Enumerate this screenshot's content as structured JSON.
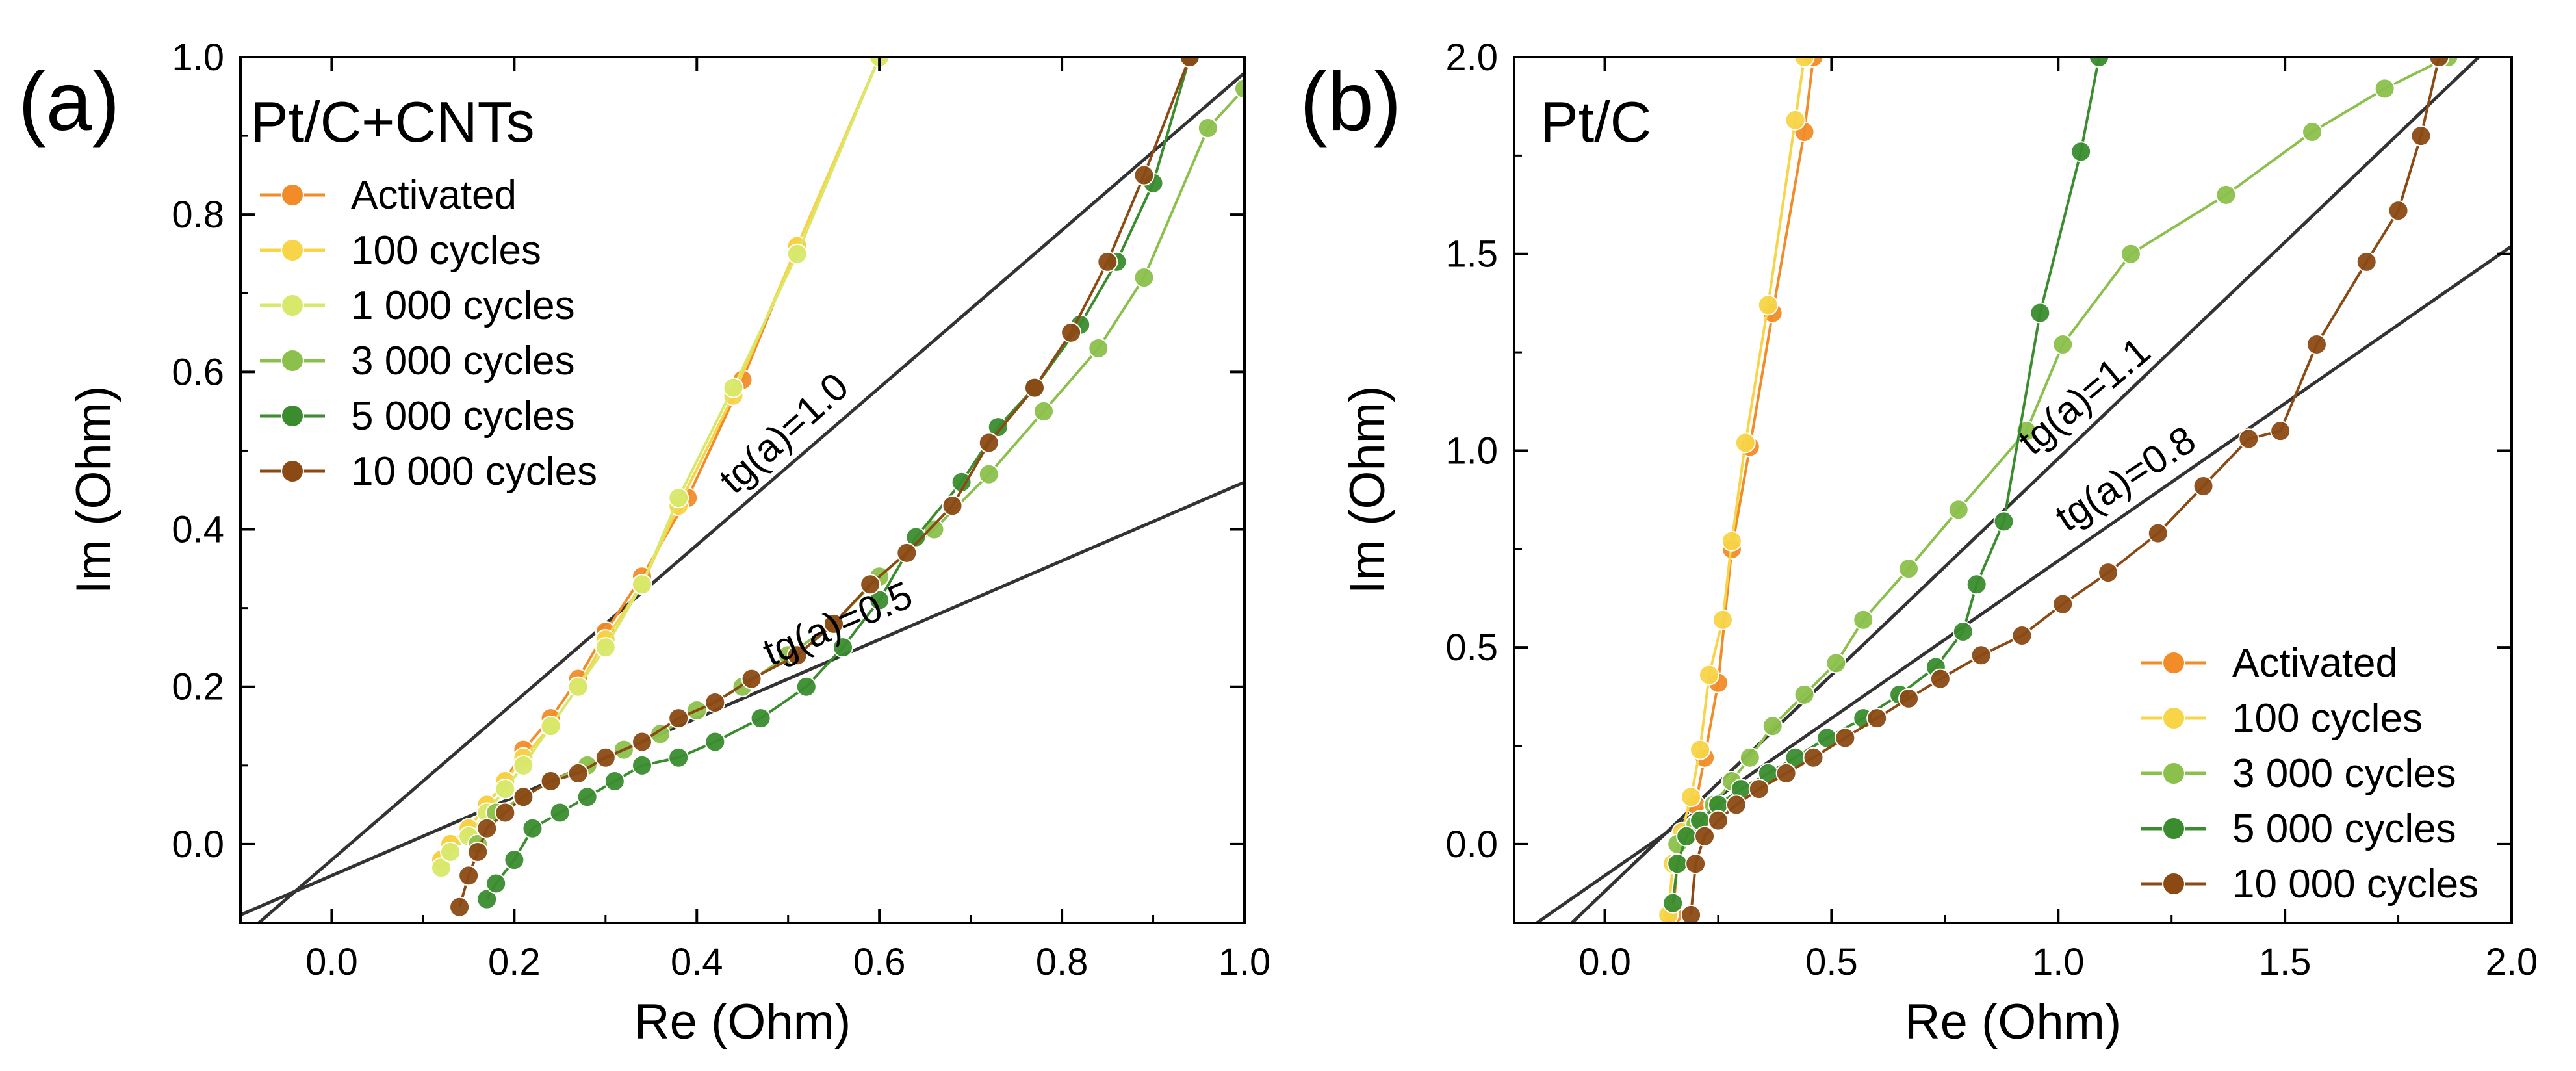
{
  "chart_data": [
    {
      "type": "scatter",
      "panel_label": "(a)",
      "title": "Pt/C+CNTs",
      "xlabel": "Re (Ohm)",
      "ylabel": "Im (Ohm)",
      "xlim": [
        -0.1,
        1.0
      ],
      "ylim": [
        -0.1,
        1.0
      ],
      "xticks": [
        0.0,
        0.2,
        0.4,
        0.6,
        0.8,
        1.0
      ],
      "yticks": [
        0.0,
        0.2,
        0.4,
        0.6,
        0.8,
        1.0
      ],
      "xtick_labels": [
        "0.0",
        "0.2",
        "0.4",
        "0.6",
        "0.8",
        "1.0"
      ],
      "ytick_labels": [
        "0.0",
        "0.2",
        "0.4",
        "0.6",
        "0.8",
        "1.0"
      ],
      "legend_position": "top-left",
      "series": [
        {
          "name": "Activated",
          "color": "#F28C28",
          "x": [
            0.12,
            0.13,
            0.15,
            0.17,
            0.19,
            0.21,
            0.24,
            0.27,
            0.3,
            0.34,
            0.39,
            0.45,
            0.51,
            0.6
          ],
          "y": [
            -0.02,
            0.0,
            0.02,
            0.05,
            0.08,
            0.12,
            0.16,
            0.21,
            0.27,
            0.34,
            0.44,
            0.59,
            0.76,
            1.0
          ]
        },
        {
          "name": "100 cycles",
          "color": "#F7D448",
          "x": [
            0.12,
            0.13,
            0.15,
            0.17,
            0.19,
            0.21,
            0.24,
            0.27,
            0.3,
            0.34,
            0.38,
            0.44,
            0.51,
            0.6
          ],
          "y": [
            -0.02,
            0.0,
            0.02,
            0.05,
            0.08,
            0.11,
            0.15,
            0.2,
            0.26,
            0.33,
            0.43,
            0.57,
            0.76,
            1.0
          ]
        },
        {
          "name": "1 000 cycles",
          "color": "#D8E86A",
          "x": [
            0.12,
            0.13,
            0.15,
            0.17,
            0.19,
            0.21,
            0.24,
            0.27,
            0.3,
            0.34,
            0.38,
            0.44,
            0.51,
            0.6
          ],
          "y": [
            -0.03,
            -0.01,
            0.01,
            0.04,
            0.07,
            0.1,
            0.15,
            0.2,
            0.25,
            0.33,
            0.44,
            0.58,
            0.75,
            1.0
          ]
        },
        {
          "name": "3 000 cycles",
          "color": "#8CC04C",
          "x": [
            0.16,
            0.18,
            0.21,
            0.24,
            0.28,
            0.32,
            0.36,
            0.4,
            0.45,
            0.5,
            0.55,
            0.6,
            0.66,
            0.72,
            0.78,
            0.84,
            0.89,
            0.96,
            1.0
          ],
          "y": [
            0.0,
            0.04,
            0.06,
            0.08,
            0.1,
            0.12,
            0.14,
            0.17,
            0.2,
            0.24,
            0.28,
            0.34,
            0.4,
            0.47,
            0.55,
            0.63,
            0.72,
            0.91,
            0.96
          ]
        },
        {
          "name": "5 000 cycles",
          "color": "#3A8C2E",
          "x": [
            0.17,
            0.18,
            0.2,
            0.22,
            0.25,
            0.28,
            0.31,
            0.34,
            0.38,
            0.42,
            0.47,
            0.52,
            0.56,
            0.6,
            0.64,
            0.69,
            0.73,
            0.77,
            0.82,
            0.86,
            0.9,
            0.94
          ],
          "y": [
            -0.07,
            -0.05,
            -0.02,
            0.02,
            0.04,
            0.06,
            0.08,
            0.1,
            0.11,
            0.13,
            0.16,
            0.2,
            0.25,
            0.31,
            0.39,
            0.46,
            0.53,
            0.58,
            0.66,
            0.74,
            0.84,
            1.0
          ]
        },
        {
          "name": "10 000 cycles",
          "color": "#8B4A14",
          "x": [
            0.14,
            0.15,
            0.16,
            0.17,
            0.19,
            0.21,
            0.24,
            0.27,
            0.3,
            0.34,
            0.38,
            0.42,
            0.46,
            0.51,
            0.55,
            0.59,
            0.63,
            0.68,
            0.72,
            0.77,
            0.81,
            0.85,
            0.89,
            0.94
          ],
          "y": [
            -0.08,
            -0.04,
            -0.01,
            0.02,
            0.04,
            0.06,
            0.08,
            0.09,
            0.11,
            0.13,
            0.16,
            0.18,
            0.21,
            0.24,
            0.28,
            0.33,
            0.37,
            0.43,
            0.51,
            0.58,
            0.65,
            0.74,
            0.85,
            1.0
          ]
        }
      ],
      "fit_lines": [
        {
          "label": "tg(a)=1.0",
          "slope": 1.0,
          "intercept": -0.02,
          "color": "#333333"
        },
        {
          "label": "tg(a)=0.5",
          "slope": 0.5,
          "intercept": -0.04,
          "color": "#333333"
        }
      ]
    },
    {
      "type": "scatter",
      "panel_label": "(b)",
      "title": "Pt/C",
      "xlabel": "Re (Ohm)",
      "ylabel": "Im (Ohm)",
      "xlim": [
        -0.2,
        2.0
      ],
      "ylim": [
        -0.2,
        2.0
      ],
      "xticks": [
        0.0,
        0.5,
        1.0,
        1.5,
        2.0
      ],
      "yticks": [
        0.0,
        0.5,
        1.0,
        1.5,
        2.0
      ],
      "xtick_labels": [
        "0.0",
        "0.5",
        "1.0",
        "1.5",
        "2.0"
      ],
      "ytick_labels": [
        "0.0",
        "0.5",
        "1.0",
        "1.5",
        "2.0"
      ],
      "legend_position": "bottom-right",
      "series": [
        {
          "name": "Activated",
          "color": "#F28C28",
          "x": [
            0.15,
            0.16,
            0.18,
            0.2,
            0.22,
            0.25,
            0.28,
            0.32,
            0.37,
            0.44,
            0.46
          ],
          "y": [
            -0.18,
            -0.05,
            0.02,
            0.1,
            0.22,
            0.41,
            0.75,
            1.01,
            1.35,
            1.81,
            2.0
          ]
        },
        {
          "name": "100 cycles",
          "color": "#F7D448",
          "x": [
            0.14,
            0.15,
            0.17,
            0.19,
            0.21,
            0.23,
            0.26,
            0.28,
            0.31,
            0.36,
            0.42,
            0.44
          ],
          "y": [
            -0.18,
            -0.05,
            0.03,
            0.12,
            0.24,
            0.43,
            0.57,
            0.77,
            1.02,
            1.37,
            1.84,
            2.0
          ]
        },
        {
          "name": "3 000 cycles",
          "color": "#8CC04C",
          "x": [
            0.16,
            0.2,
            0.24,
            0.28,
            0.32,
            0.37,
            0.44,
            0.51,
            0.57,
            0.67,
            0.78,
            0.93,
            1.01,
            1.16,
            1.37,
            1.56,
            1.72,
            1.86
          ],
          "y": [
            0.0,
            0.05,
            0.1,
            0.16,
            0.22,
            0.3,
            0.38,
            0.46,
            0.57,
            0.7,
            0.85,
            1.05,
            1.27,
            1.5,
            1.65,
            1.81,
            1.92,
            2.0
          ]
        },
        {
          "name": "5 000 cycles",
          "color": "#3A8C2E",
          "x": [
            0.15,
            0.16,
            0.18,
            0.21,
            0.25,
            0.3,
            0.36,
            0.42,
            0.49,
            0.57,
            0.65,
            0.73,
            0.79,
            0.82,
            0.88,
            0.96,
            1.05,
            1.09
          ],
          "y": [
            -0.15,
            -0.05,
            0.02,
            0.06,
            0.1,
            0.14,
            0.18,
            0.22,
            0.27,
            0.32,
            0.38,
            0.45,
            0.54,
            0.66,
            0.82,
            1.35,
            1.76,
            2.0
          ]
        },
        {
          "name": "10 000 cycles",
          "color": "#8B4A14",
          "x": [
            0.19,
            0.2,
            0.22,
            0.25,
            0.29,
            0.34,
            0.4,
            0.46,
            0.53,
            0.6,
            0.67,
            0.74,
            0.83,
            0.92,
            1.01,
            1.11,
            1.22,
            1.32,
            1.42,
            1.49,
            1.57,
            1.68,
            1.75,
            1.8,
            1.84
          ],
          "y": [
            -0.18,
            -0.05,
            0.02,
            0.06,
            0.1,
            0.14,
            0.18,
            0.22,
            0.27,
            0.32,
            0.37,
            0.42,
            0.48,
            0.53,
            0.61,
            0.69,
            0.79,
            0.91,
            1.03,
            1.05,
            1.27,
            1.48,
            1.61,
            1.8,
            2.0
          ]
        }
      ],
      "fit_lines": [
        {
          "label": "tg(a)=1.1",
          "slope": 1.1,
          "intercept": -0.12,
          "color": "#333333"
        },
        {
          "label": "tg(a)=0.8",
          "slope": 0.8,
          "intercept": -0.08,
          "color": "#333333"
        }
      ]
    }
  ]
}
